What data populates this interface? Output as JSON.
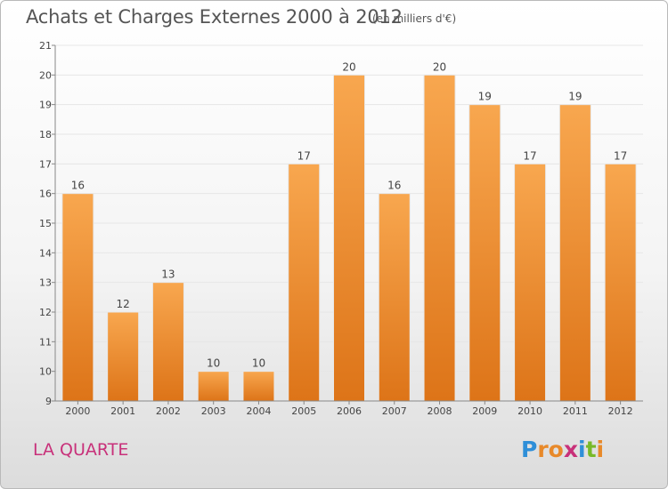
{
  "header": {
    "title": "Achats et Charges Externes 2000 à 2012",
    "subtitle": "(en milliers d'€)"
  },
  "footer": {
    "commune": "LA QUARTE",
    "logo": [
      "P",
      "r",
      "o",
      "x",
      "i",
      "t",
      "i"
    ],
    "logo_colors": [
      "#2f8fd8",
      "#e8892a",
      "#e8892a",
      "#c8317a",
      "#2f8fd8",
      "#78b928",
      "#e8892a"
    ]
  },
  "colors": {
    "bar_top": "#f8a74f",
    "bar_bottom": "#dd7418",
    "grid": "#e6e6e6",
    "axis": "#888888",
    "text": "#444444"
  },
  "chart_data": {
    "type": "bar",
    "categories": [
      "2000",
      "2001",
      "2002",
      "2003",
      "2004",
      "2005",
      "2006",
      "2007",
      "2008",
      "2009",
      "2010",
      "2011",
      "2012"
    ],
    "values": [
      16,
      12,
      13,
      10,
      10,
      17,
      20,
      16,
      20,
      19,
      17,
      19,
      17
    ],
    "yticks": [
      9,
      10,
      11,
      12,
      13,
      14,
      15,
      16,
      17,
      18,
      19,
      20,
      21
    ],
    "ylim": [
      9,
      21
    ],
    "title": "Achats et Charges Externes 2000 à 2012",
    "xlabel": "",
    "ylabel": "",
    "grid": true,
    "data_labels": true
  }
}
